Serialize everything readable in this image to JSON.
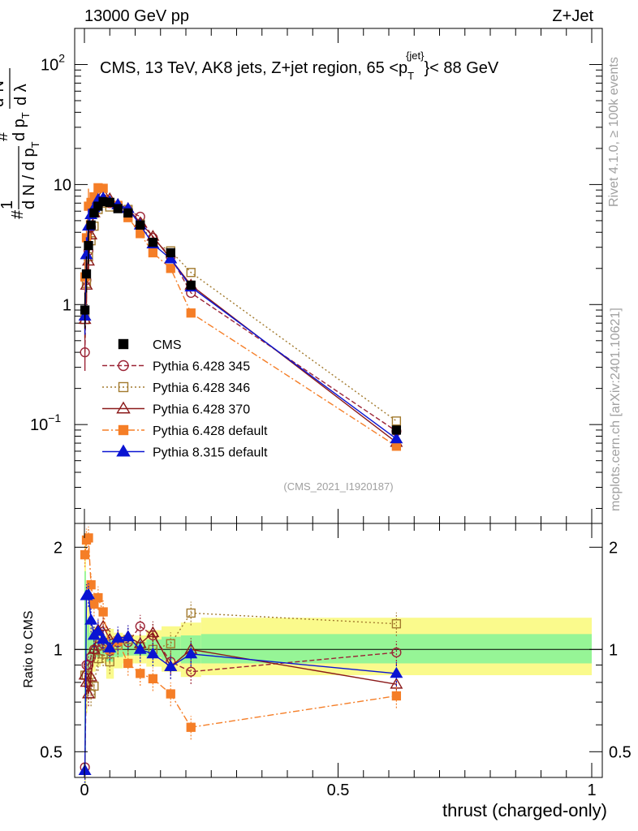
{
  "header": {
    "left": "13000 GeV pp",
    "right": "Z+Jet"
  },
  "side": {
    "rivet": "Rivet 4.1.0, ≥ 100k events",
    "mcplots": "mcplots.cern.ch [arXiv:2401.10621]"
  },
  "colors": {
    "cms": "#000000",
    "p345": "#9b2335",
    "p346": "#a27a2e",
    "p370": "#8b1a1a",
    "p6def": "#f57e27",
    "p8def": "#0a14d2",
    "band_green": "#96f596",
    "band_yellow": "#fafa8c"
  },
  "chart_data": [
    {
      "type": "line",
      "scale": "log",
      "title": "CMS, 13 TeV, AK8 jets, Z+jet region, 65 <p_T^{jet}< 88 GeV",
      "title_parts": {
        "pre": "CMS, 13 TeV, AK8 jets, Z+jet region, 65 <p",
        "sub": "T",
        "sup": "{jet}",
        "post": "}< 88 GeV"
      },
      "ylabel_parts": {
        "hash": "#",
        "n1": "1",
        "dn": "d N / d p",
        "t": "T",
        "hash2": "#",
        "dpt": "d p",
        "t2": "T",
        "d2n": "d",
        "n2": "N",
        "sq": "2",
        "dl": "d λ"
      },
      "watermark": "(CMS_2021_I1920187)",
      "xlim": [
        0,
        1
      ],
      "ylim": [
        0.015,
        200
      ],
      "yticks": [
        {
          "v": 100,
          "label": "10",
          "exp": "2"
        },
        {
          "v": 10,
          "label": "10",
          "exp": ""
        },
        {
          "v": 1,
          "label": "1",
          "exp": ""
        },
        {
          "v": 0.1,
          "label": "10",
          "exp": "−1"
        }
      ],
      "legend": [
        {
          "key": "cms",
          "label": "CMS"
        },
        {
          "key": "p345",
          "label": "Pythia 6.428 345"
        },
        {
          "key": "p346",
          "label": "Pythia 6.428 346"
        },
        {
          "key": "p370",
          "label": "Pythia 6.428 370"
        },
        {
          "key": "p6def",
          "label": "Pythia 6.428 default"
        },
        {
          "key": "p8def",
          "label": "Pythia 8.315 default"
        }
      ],
      "x": [
        0.001,
        0.004,
        0.008,
        0.013,
        0.019,
        0.027,
        0.037,
        0.05,
        0.066,
        0.086,
        0.11,
        0.135,
        0.17,
        0.21,
        0.615
      ],
      "series": [
        {
          "name": "CMS",
          "key": "cms",
          "values": [
            0.9,
            1.8,
            3.1,
            4.6,
            5.8,
            6.6,
            7.2,
            7.1,
            6.3,
            5.8,
            4.6,
            3.3,
            2.7,
            1.45,
            0.09
          ]
        },
        {
          "name": "Pythia 6.428 345",
          "key": "p345",
          "values": [
            0.4,
            1.6,
            2.8,
            4.4,
            5.8,
            6.7,
            7.4,
            7.0,
            6.6,
            6.1,
            5.4,
            3.6,
            2.5,
            1.25,
            0.088
          ]
        },
        {
          "name": "Pythia 6.428 346",
          "key": "p346",
          "values": [
            0.75,
            1.5,
            2.5,
            3.4,
            4.5,
            6.2,
            7.0,
            6.5,
            6.5,
            6.2,
            4.7,
            3.3,
            2.8,
            1.85,
            0.107
          ]
        },
        {
          "name": "Pythia 6.428 370",
          "key": "p370",
          "values": [
            0.75,
            1.45,
            2.3,
            3.8,
            5.8,
            7.5,
            8.4,
            7.6,
            6.8,
            6.3,
            4.8,
            3.7,
            2.4,
            1.45,
            0.071
          ]
        },
        {
          "name": "Pythia 6.428 default",
          "key": "p6def",
          "values": [
            1.7,
            3.6,
            6.6,
            7.1,
            7.9,
            9.4,
            9.3,
            7.1,
            6.7,
            5.3,
            3.9,
            2.7,
            2.0,
            0.85,
            0.066
          ]
        },
        {
          "name": "Pythia 8.315 default",
          "key": "p8def",
          "values": [
            0.8,
            2.6,
            4.5,
            5.6,
            6.4,
            7.5,
            7.7,
            7.2,
            6.8,
            6.3,
            4.6,
            3.2,
            2.4,
            1.4,
            0.076
          ]
        }
      ]
    },
    {
      "type": "line",
      "scale": "log",
      "ylabel": "Ratio to CMS",
      "xlabel": "thrust (charged-only)",
      "xlim": [
        0,
        1
      ],
      "ylim": [
        0.42,
        2.35
      ],
      "xticks": [
        {
          "v": 0,
          "label": "0"
        },
        {
          "v": 0.5,
          "label": "0.5"
        },
        {
          "v": 1,
          "label": "1"
        }
      ],
      "yticks": [
        {
          "v": 2,
          "label": "2"
        },
        {
          "v": 1,
          "label": "1"
        },
        {
          "v": 0.5,
          "label": "0.5"
        }
      ],
      "bands": [
        {
          "x0": 0.0,
          "x1": 0.003,
          "g": [
            0.5,
            1.7
          ],
          "y": [
            0.4,
            2.2
          ]
        },
        {
          "x0": 0.003,
          "x1": 0.006,
          "g": [
            0.8,
            1.25
          ],
          "y": [
            0.65,
            1.55
          ]
        },
        {
          "x0": 0.006,
          "x1": 0.01,
          "g": [
            0.85,
            1.18
          ],
          "y": [
            0.75,
            1.35
          ]
        },
        {
          "x0": 0.01,
          "x1": 0.016,
          "g": [
            0.9,
            1.12
          ],
          "y": [
            0.8,
            1.25
          ]
        },
        {
          "x0": 0.016,
          "x1": 0.022,
          "g": [
            0.93,
            1.08
          ],
          "y": [
            0.86,
            1.17
          ]
        },
        {
          "x0": 0.022,
          "x1": 0.032,
          "g": [
            0.95,
            1.06
          ],
          "y": [
            0.89,
            1.13
          ]
        },
        {
          "x0": 0.032,
          "x1": 0.043,
          "g": [
            0.96,
            1.05
          ],
          "y": [
            0.91,
            1.1
          ]
        },
        {
          "x0": 0.043,
          "x1": 0.058,
          "g": [
            0.92,
            1.07
          ],
          "y": [
            0.82,
            1.15
          ]
        },
        {
          "x0": 0.058,
          "x1": 0.076,
          "g": [
            0.95,
            1.06
          ],
          "y": [
            0.88,
            1.12
          ]
        },
        {
          "x0": 0.076,
          "x1": 0.098,
          "g": [
            0.96,
            1.05
          ],
          "y": [
            0.91,
            1.1
          ]
        },
        {
          "x0": 0.098,
          "x1": 0.122,
          "g": [
            0.96,
            1.05
          ],
          "y": [
            0.91,
            1.1
          ]
        },
        {
          "x0": 0.122,
          "x1": 0.152,
          "g": [
            0.95,
            1.07
          ],
          "y": [
            0.89,
            1.14
          ]
        },
        {
          "x0": 0.152,
          "x1": 0.19,
          "g": [
            0.93,
            1.09
          ],
          "y": [
            0.86,
            1.17
          ]
        },
        {
          "x0": 0.19,
          "x1": 0.23,
          "g": [
            0.91,
            1.1
          ],
          "y": [
            0.83,
            1.2
          ]
        },
        {
          "x0": 0.23,
          "x1": 1.0,
          "g": [
            0.91,
            1.11
          ],
          "y": [
            0.84,
            1.24
          ]
        }
      ],
      "series": [
        {
          "name": "Pythia 6.428 345",
          "key": "p345",
          "values": [
            0.45,
            0.9,
            0.9,
            0.95,
            1.0,
            1.02,
            1.04,
            0.99,
            1.05,
            1.05,
            1.17,
            1.1,
            0.92,
            0.86,
            0.98
          ]
        },
        {
          "name": "Pythia 6.428 346",
          "key": "p346",
          "values": [
            0.84,
            0.84,
            0.8,
            0.74,
            0.78,
            0.94,
            0.97,
            0.92,
            1.03,
            1.07,
            1.02,
            1.0,
            1.04,
            1.28,
            1.19
          ]
        },
        {
          "name": "Pythia 6.428 370",
          "key": "p370",
          "values": [
            0.84,
            0.8,
            0.74,
            0.83,
            1.0,
            1.14,
            1.17,
            1.07,
            1.08,
            1.09,
            1.04,
            1.12,
            0.89,
            1.0,
            0.79
          ]
        },
        {
          "name": "Pythia 6.428 default",
          "key": "p6def",
          "values": [
            1.9,
            2.1,
            2.13,
            1.55,
            1.36,
            1.42,
            1.29,
            1.0,
            1.06,
            0.91,
            0.85,
            0.82,
            0.74,
            0.59,
            0.73
          ]
        },
        {
          "name": "Pythia 8.315 default",
          "key": "p8def",
          "values": [
            0.44,
            1.44,
            1.45,
            1.22,
            1.1,
            1.13,
            1.07,
            1.01,
            1.08,
            1.09,
            1.0,
            0.97,
            0.89,
            0.97,
            0.85
          ]
        }
      ]
    }
  ]
}
